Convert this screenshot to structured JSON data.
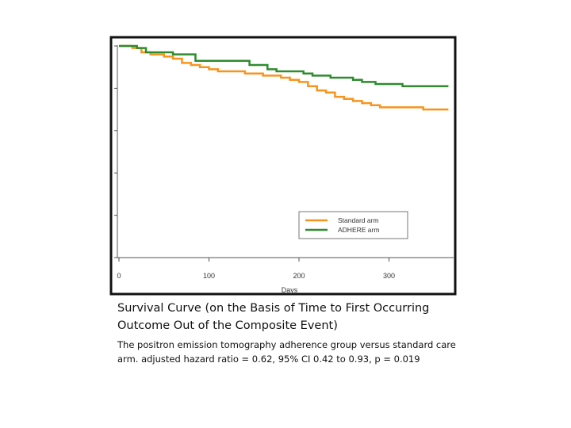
{
  "chart_data": {
    "type": "line",
    "xlabel": "Days",
    "ylabel": "",
    "xlim": [
      0,
      370
    ],
    "ylim": [
      0,
      1
    ],
    "x_ticks": [
      0,
      100,
      200,
      300
    ],
    "grid": false,
    "legend_position": "bottom-right",
    "series": [
      {
        "name": "Standard arm",
        "color": "#f7941d",
        "points": [
          [
            0,
            1.0
          ],
          [
            15,
            0.99
          ],
          [
            25,
            0.97
          ],
          [
            35,
            0.96
          ],
          [
            50,
            0.95
          ],
          [
            60,
            0.94
          ],
          [
            70,
            0.92
          ],
          [
            80,
            0.91
          ],
          [
            90,
            0.9
          ],
          [
            100,
            0.89
          ],
          [
            110,
            0.88
          ],
          [
            130,
            0.88
          ],
          [
            140,
            0.87
          ],
          [
            160,
            0.86
          ],
          [
            180,
            0.85
          ],
          [
            190,
            0.84
          ],
          [
            200,
            0.83
          ],
          [
            210,
            0.81
          ],
          [
            220,
            0.79
          ],
          [
            230,
            0.78
          ],
          [
            240,
            0.76
          ],
          [
            250,
            0.75
          ],
          [
            260,
            0.74
          ],
          [
            270,
            0.73
          ],
          [
            280,
            0.72
          ],
          [
            290,
            0.71
          ],
          [
            300,
            0.71
          ],
          [
            330,
            0.71
          ],
          [
            338,
            0.7
          ],
          [
            366,
            0.7
          ]
        ]
      },
      {
        "name": "ADHERE arm",
        "color": "#2e8b2e",
        "points": [
          [
            0,
            1.0
          ],
          [
            20,
            0.99
          ],
          [
            30,
            0.97
          ],
          [
            60,
            0.96
          ],
          [
            85,
            0.93
          ],
          [
            135,
            0.93
          ],
          [
            145,
            0.91
          ],
          [
            165,
            0.89
          ],
          [
            175,
            0.88
          ],
          [
            200,
            0.88
          ],
          [
            205,
            0.87
          ],
          [
            215,
            0.86
          ],
          [
            230,
            0.86
          ],
          [
            235,
            0.85
          ],
          [
            260,
            0.84
          ],
          [
            270,
            0.83
          ],
          [
            285,
            0.82
          ],
          [
            300,
            0.82
          ],
          [
            315,
            0.81
          ],
          [
            366,
            0.81
          ]
        ]
      }
    ]
  },
  "caption": {
    "title": "Survival Curve (on the Basis of Time to First Occurring Outcome Out of the Composite Event)",
    "body": "The positron emission tomography adherence group versus standard care arm. adjusted hazard ratio = 0.62, 95% CI 0.42 to 0.93, p = 0.019"
  }
}
